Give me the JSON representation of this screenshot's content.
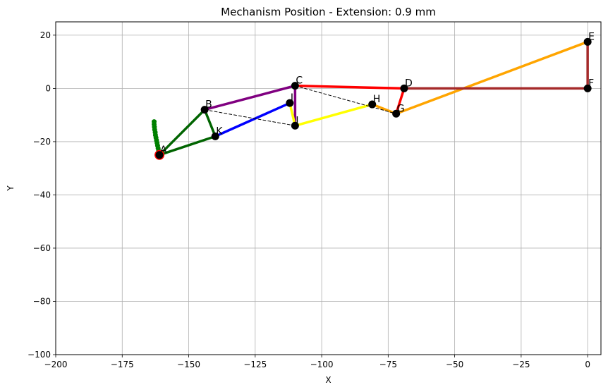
{
  "chart_data": {
    "type": "line",
    "title": "Mechanism Position - Extension: 0.9 mm",
    "xlabel": "X",
    "ylabel": "Y",
    "xlim": [
      -200,
      5
    ],
    "ylim": [
      -100,
      25
    ],
    "xticks": [
      -200,
      -175,
      -150,
      -125,
      -100,
      -75,
      -50,
      -25,
      0
    ],
    "yticks": [
      -100,
      -80,
      -60,
      -40,
      -20,
      0,
      20
    ],
    "xtick_labels": [
      "−200",
      "−175",
      "−150",
      "−125",
      "−100",
      "−75",
      "−50",
      "−25",
      "0"
    ],
    "ytick_labels": [
      "−100",
      "−80",
      "−60",
      "−40",
      "−20",
      "0",
      "20"
    ],
    "grid": true,
    "points": [
      {
        "name": "A",
        "x": -161,
        "y": -25
      },
      {
        "name": "B",
        "x": -144,
        "y": -8
      },
      {
        "name": "C",
        "x": -110,
        "y": 1
      },
      {
        "name": "D",
        "x": -69,
        "y": 0
      },
      {
        "name": "E",
        "x": 0,
        "y": 17.5
      },
      {
        "name": "F",
        "x": 0,
        "y": 0
      },
      {
        "name": "G",
        "x": -72,
        "y": -9.5
      },
      {
        "name": "H",
        "x": -81,
        "y": -6
      },
      {
        "name": "I",
        "x": -110,
        "y": -14
      },
      {
        "name": "J",
        "x": -112,
        "y": -5.5
      },
      {
        "name": "K",
        "x": -140,
        "y": -18
      }
    ],
    "links": [
      {
        "from": "A",
        "to": "B",
        "color": "#006400",
        "style": "solid"
      },
      {
        "from": "A",
        "to": "K",
        "color": "#006400",
        "style": "solid"
      },
      {
        "from": "B",
        "to": "K",
        "color": "#006400",
        "style": "solid"
      },
      {
        "from": "B",
        "to": "C",
        "color": "#800080",
        "style": "solid"
      },
      {
        "from": "C",
        "to": "I",
        "color": "#800080",
        "style": "solid"
      },
      {
        "from": "K",
        "to": "J",
        "color": "#0000ff",
        "style": "solid"
      },
      {
        "from": "J",
        "to": "I",
        "color": "#ffff00",
        "style": "solid"
      },
      {
        "from": "I",
        "to": "H",
        "color": "#ffff00",
        "style": "solid"
      },
      {
        "from": "C",
        "to": "D",
        "color": "#ff0000",
        "style": "solid"
      },
      {
        "from": "D",
        "to": "G",
        "color": "#ff0000",
        "style": "solid"
      },
      {
        "from": "H",
        "to": "G",
        "color": "#ffa500",
        "style": "solid"
      },
      {
        "from": "G",
        "to": "E",
        "color": "#ffa500",
        "style": "solid"
      },
      {
        "from": "D",
        "to": "F",
        "color": "#a52a2a",
        "style": "solid"
      },
      {
        "from": "F",
        "to": "E",
        "color": "#a52a2a",
        "style": "solid"
      },
      {
        "from": "B",
        "to": "I",
        "color": "#000000",
        "style": "dashed"
      },
      {
        "from": "C",
        "to": "G",
        "color": "#000000",
        "style": "dashed"
      }
    ],
    "trace": {
      "color": "#008000",
      "points": [
        [
          -163,
          -12.5
        ],
        [
          -163,
          -13.5
        ],
        [
          -162.9,
          -14.5
        ],
        [
          -162.8,
          -15.5
        ],
        [
          -162.6,
          -16.5
        ],
        [
          -162.5,
          -17.5
        ],
        [
          -162.3,
          -18.5
        ],
        [
          -162.1,
          -19.5
        ],
        [
          -161.9,
          -20.5
        ],
        [
          -161.7,
          -21.5
        ],
        [
          -161.5,
          -22.5
        ],
        [
          -161.3,
          -23.5
        ],
        [
          -161.1,
          -24.5
        ]
      ]
    },
    "highlight": {
      "name": "A",
      "color": "#ff0000"
    }
  }
}
